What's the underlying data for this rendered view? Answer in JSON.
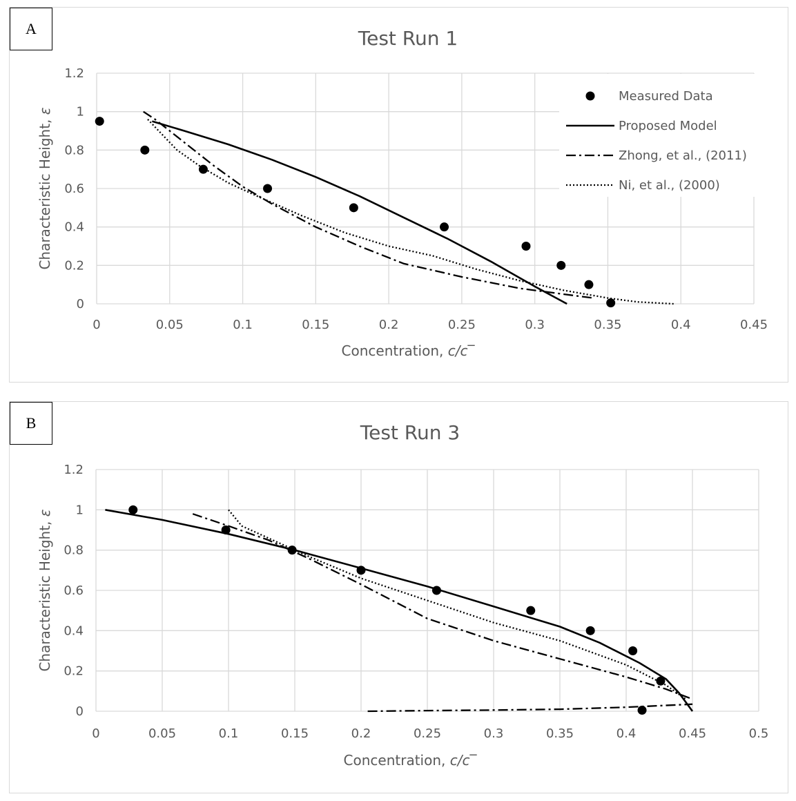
{
  "chart_data": [
    {
      "type": "scatter",
      "panel_label": "A",
      "title": "Test Run 1",
      "xlabel_text": "Concentration, ",
      "xlabel_symbol": "c/c‾",
      "ylabel_text": "Characteristic Height, ",
      "ylabel_symbol": "ε",
      "xlim": [
        0,
        0.45
      ],
      "ylim": [
        0,
        1.2
      ],
      "x_ticks": [
        "0",
        "0.05",
        "0.1",
        "0.15",
        "0.2",
        "0.25",
        "0.3",
        "0.35",
        "0.4",
        "0.45"
      ],
      "y_ticks": [
        "0",
        "0.2",
        "0.4",
        "0.6",
        "0.8",
        "1",
        "1.2"
      ],
      "grid": true,
      "legend_position": "top-right",
      "series": [
        {
          "name": "Measured Data",
          "kind": "markers",
          "x": [
            0.002,
            0.033,
            0.073,
            0.117,
            0.176,
            0.238,
            0.294,
            0.318,
            0.337,
            0.352
          ],
          "y": [
            0.95,
            0.8,
            0.7,
            0.6,
            0.5,
            0.4,
            0.3,
            0.2,
            0.1,
            0.005
          ]
        },
        {
          "name": "Proposed Model",
          "kind": "solid",
          "x": [
            0.038,
            0.06,
            0.09,
            0.12,
            0.15,
            0.18,
            0.21,
            0.24,
            0.27,
            0.3,
            0.322
          ],
          "y": [
            0.95,
            0.9,
            0.83,
            0.75,
            0.66,
            0.56,
            0.45,
            0.34,
            0.22,
            0.09,
            0.0
          ]
        },
        {
          "name": "Zhong, et al., (2011)",
          "kind": "dashdot",
          "x": [
            0.032,
            0.04,
            0.06,
            0.08,
            0.1,
            0.12,
            0.15,
            0.18,
            0.21,
            0.25,
            0.29,
            0.32,
            0.34
          ],
          "y": [
            1.0,
            0.96,
            0.84,
            0.72,
            0.61,
            0.52,
            0.4,
            0.3,
            0.21,
            0.14,
            0.08,
            0.05,
            0.03
          ]
        },
        {
          "name": "Ni, et al., (2000)",
          "kind": "dotted",
          "x": [
            0.035,
            0.045,
            0.055,
            0.07,
            0.09,
            0.11,
            0.14,
            0.17,
            0.2,
            0.23,
            0.26,
            0.29,
            0.32,
            0.35,
            0.37,
            0.395
          ],
          "y": [
            0.96,
            0.88,
            0.8,
            0.72,
            0.63,
            0.56,
            0.46,
            0.37,
            0.3,
            0.25,
            0.18,
            0.12,
            0.07,
            0.03,
            0.01,
            0.0
          ]
        }
      ]
    },
    {
      "type": "scatter",
      "panel_label": "B",
      "title": "Test Run 3",
      "xlabel_text": "Concentration, ",
      "xlabel_symbol": "c/c‾",
      "ylabel_text": "Characteristic Height, ",
      "ylabel_symbol": "ε",
      "xlim": [
        0,
        0.5
      ],
      "ylim": [
        0,
        1.2
      ],
      "x_ticks": [
        "0",
        "0.05",
        "0.1",
        "0.15",
        "0.2",
        "0.25",
        "0.3",
        "0.35",
        "0.4",
        "0.45",
        "0.5"
      ],
      "y_ticks": [
        "0",
        "0.2",
        "0.4",
        "0.6",
        "0.8",
        "1",
        "1.2"
      ],
      "grid": true,
      "legend_position": "none",
      "series": [
        {
          "name": "Measured Data",
          "kind": "markers",
          "x": [
            0.028,
            0.098,
            0.148,
            0.2,
            0.257,
            0.328,
            0.373,
            0.405,
            0.426,
            0.412
          ],
          "y": [
            1.0,
            0.9,
            0.8,
            0.7,
            0.6,
            0.5,
            0.4,
            0.3,
            0.15,
            0.005
          ]
        },
        {
          "name": "Proposed Model",
          "kind": "solid",
          "x": [
            0.007,
            0.05,
            0.1,
            0.15,
            0.2,
            0.25,
            0.3,
            0.35,
            0.38,
            0.41,
            0.43,
            0.44,
            0.45
          ],
          "y": [
            1.0,
            0.95,
            0.88,
            0.8,
            0.71,
            0.62,
            0.52,
            0.42,
            0.34,
            0.24,
            0.16,
            0.09,
            0.0
          ]
        },
        {
          "name": "Zhong, et al., (2011)",
          "kind": "dashdot",
          "x": [
            0.073,
            0.1,
            0.13,
            0.16,
            0.2,
            0.25,
            0.3,
            0.35,
            0.4,
            0.43,
            0.45
          ],
          "y": [
            0.98,
            0.92,
            0.85,
            0.76,
            0.63,
            0.46,
            0.35,
            0.26,
            0.17,
            0.11,
            0.06
          ]
        },
        {
          "name": "Zhong, et al., (2011) lower branch",
          "kind": "dashdot",
          "x": [
            0.205,
            0.25,
            0.3,
            0.35,
            0.4,
            0.45
          ],
          "y": [
            0.0,
            0.003,
            0.006,
            0.01,
            0.02,
            0.035
          ]
        },
        {
          "name": "Ni, et al., (2000)",
          "kind": "dotted",
          "x": [
            0.1,
            0.11,
            0.13,
            0.16,
            0.2,
            0.25,
            0.3,
            0.35,
            0.4,
            0.43,
            0.445
          ],
          "y": [
            1.0,
            0.92,
            0.86,
            0.77,
            0.66,
            0.55,
            0.44,
            0.35,
            0.23,
            0.13,
            0.06
          ]
        }
      ]
    }
  ]
}
